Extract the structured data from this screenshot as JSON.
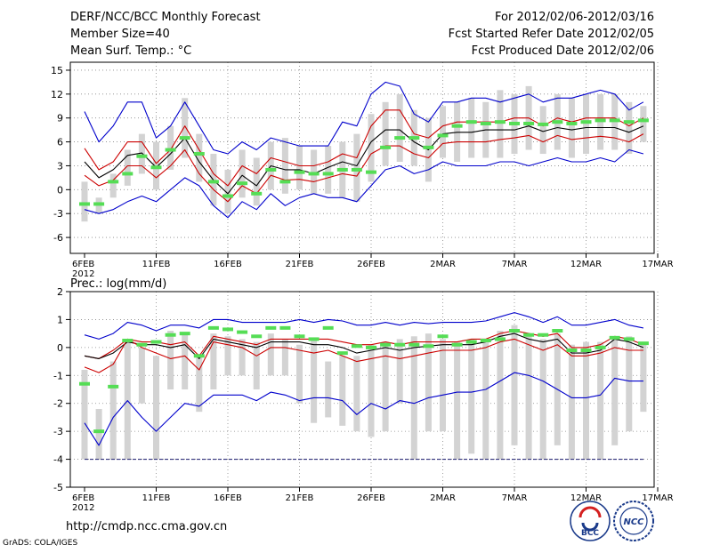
{
  "header": {
    "title": "DERF/NCC/BCC Monthly Forecast",
    "member_size": "Member Size=40",
    "forecast_period": "For 2012/02/06-2012/03/16",
    "started_refer": "Fcst Started Refer Date 2012/02/05",
    "produced": "Fcst Produced Date 2012/02/06"
  },
  "footer": {
    "url": "http://cmdp.ncc.cma.gov.cn",
    "grads_credit": "GrADS: COLA/IGES",
    "logo_bcc": "BCC",
    "logo_ncc": "NCC"
  },
  "colors": {
    "envelope": "#0000cc",
    "spread": "#cc0000",
    "mean": "#000000",
    "box": "#d3d3d3",
    "marker": "#55dd55"
  },
  "chart_data": [
    {
      "type": "line",
      "title": "Mean Surf. Temp.: °C",
      "xlabel": "",
      "ylabel": "",
      "ylim": [
        -8,
        16
      ],
      "yticks": [
        15,
        12,
        9,
        6,
        3,
        0,
        -3,
        -6
      ],
      "x_ticks": [
        {
          "day": 0,
          "label": "6FEB"
        },
        {
          "day": 5,
          "label": "11FEB"
        },
        {
          "day": 10,
          "label": "16FEB"
        },
        {
          "day": 15,
          "label": "21FEB"
        },
        {
          "day": 20,
          "label": "26FEB"
        },
        {
          "day": 25,
          "label": "2MAR"
        },
        {
          "day": 30,
          "label": "7MAR"
        },
        {
          "day": 35,
          "label": "12MAR"
        },
        {
          "day": 40,
          "label": "17MAR"
        }
      ],
      "year_label": "2012",
      "series": [
        {
          "name": "upper envelope",
          "values": [
            9.8,
            6,
            8,
            11,
            11,
            6.5,
            8,
            11,
            8,
            5,
            4.5,
            6,
            5,
            6.5,
            6,
            5.5,
            5.5,
            5.5,
            8.5,
            8,
            12,
            13.5,
            13,
            9.5,
            8.5,
            11,
            11,
            11.5,
            11.5,
            11,
            11.5,
            12,
            11,
            11.5,
            11.5,
            12,
            12.5,
            12,
            10,
            11
          ]
        },
        {
          "name": "upper spread",
          "values": [
            5.2,
            2.5,
            3.5,
            6,
            6,
            3.3,
            5,
            8,
            5,
            2,
            0.5,
            3,
            2,
            4,
            3.5,
            3,
            3,
            3.5,
            4.5,
            4,
            8,
            10,
            10,
            7,
            6.5,
            8,
            8.5,
            8.5,
            8.5,
            8.5,
            9,
            9,
            8,
            9,
            8.5,
            9,
            9,
            9,
            8,
            9
          ]
        },
        {
          "name": "mean",
          "values": [
            3.5,
            1.5,
            2.5,
            4.3,
            4.6,
            2.8,
            4.5,
            6.5,
            3.5,
            1.2,
            -0.5,
            1.8,
            0.5,
            3,
            2.5,
            2.5,
            2,
            2.8,
            3.5,
            3,
            6,
            7.5,
            7.5,
            6,
            5,
            7,
            7.2,
            7.2,
            7.5,
            7.5,
            7.5,
            8,
            7.3,
            7.8,
            7.5,
            7.8,
            7.8,
            7.8,
            7.2,
            8
          ]
        },
        {
          "name": "lower spread",
          "values": [
            1.8,
            0.5,
            1.2,
            3,
            3,
            1.5,
            3,
            5,
            2,
            0,
            -1.5,
            0.5,
            -0.5,
            1.8,
            1.2,
            1.3,
            1,
            1.5,
            2,
            1.7,
            4.5,
            5.5,
            5.5,
            4.5,
            4,
            5.8,
            6,
            6,
            6,
            6.3,
            6.5,
            6.8,
            6,
            6.8,
            6.3,
            6.5,
            6.7,
            6.5,
            6,
            7
          ]
        },
        {
          "name": "lower envelope",
          "values": [
            -2.5,
            -3,
            -2.5,
            -1.5,
            -0.8,
            -1.5,
            0,
            1.5,
            0.5,
            -2,
            -3.5,
            -1.5,
            -2.5,
            -0.5,
            -2,
            -1,
            -0.5,
            -1,
            -1,
            -1.5,
            0.5,
            2.5,
            3,
            2,
            2.5,
            3.5,
            3,
            3,
            3,
            3.5,
            3.5,
            3,
            3.5,
            4,
            3.5,
            3.5,
            4,
            3.5,
            5,
            4.5
          ]
        },
        {
          "name": "observed marker",
          "values": [
            -1.8,
            -1.8,
            1,
            2,
            4.2,
            2.8,
            5,
            6.5,
            4.5,
            1,
            -0.8,
            0.8,
            -0.5,
            2.5,
            1,
            2.2,
            2,
            2,
            2.5,
            2.5,
            2.2,
            5.3,
            6.5,
            6.5,
            5.3,
            6.8,
            8,
            8.5,
            8.3,
            8.5,
            8.3,
            8.3,
            8.2,
            8.5,
            8.3,
            8.5,
            8.7,
            8.7,
            8.5,
            8.7
          ]
        }
      ],
      "box_ranges": [
        [
          -4,
          1
        ],
        [
          -3,
          -1
        ],
        [
          -1,
          2
        ],
        [
          0.5,
          5
        ],
        [
          2,
          7
        ],
        [
          0,
          6
        ],
        [
          2.5,
          8
        ],
        [
          4,
          11.5
        ],
        [
          1,
          7
        ],
        [
          -2,
          4.5
        ],
        [
          -3,
          2.5
        ],
        [
          -1,
          5
        ],
        [
          -2,
          4
        ],
        [
          0,
          6
        ],
        [
          -0.5,
          6.5
        ],
        [
          0,
          5.5
        ],
        [
          -0.5,
          5
        ],
        [
          -0.5,
          5.5
        ],
        [
          -1,
          6
        ],
        [
          -1.5,
          7
        ],
        [
          1,
          9.5
        ],
        [
          3,
          11
        ],
        [
          3.5,
          12
        ],
        [
          3,
          10
        ],
        [
          1,
          9
        ],
        [
          4,
          10.5
        ],
        [
          3.5,
          11
        ],
        [
          4,
          11.5
        ],
        [
          4,
          11
        ],
        [
          4,
          12.5
        ],
        [
          4.5,
          12
        ],
        [
          5,
          13
        ],
        [
          4.5,
          10.5
        ],
        [
          5,
          12
        ],
        [
          4,
          11.5
        ],
        [
          4.5,
          12
        ],
        [
          5,
          12
        ],
        [
          5,
          12
        ],
        [
          4.5,
          11
        ],
        [
          6,
          10.5
        ]
      ]
    },
    {
      "type": "line",
      "title": "Prec.: log(mm/d)",
      "xlabel": "",
      "ylabel": "",
      "ylim": [
        -5,
        2
      ],
      "yticks": [
        2,
        1,
        0,
        -1,
        -2,
        -3,
        -4,
        -5
      ],
      "x_ticks": [
        {
          "day": 0,
          "label": "6FEB"
        },
        {
          "day": 5,
          "label": "11FEB"
        },
        {
          "day": 10,
          "label": "16FEB"
        },
        {
          "day": 15,
          "label": "21FEB"
        },
        {
          "day": 20,
          "label": "26FEB"
        },
        {
          "day": 25,
          "label": "2MAR"
        },
        {
          "day": 30,
          "label": "7MAR"
        },
        {
          "day": 35,
          "label": "12MAR"
        },
        {
          "day": 40,
          "label": "17MAR"
        }
      ],
      "year_label": "2012",
      "floor_line": -4,
      "series": [
        {
          "name": "upper envelope",
          "values": [
            0.45,
            0.3,
            0.5,
            0.9,
            0.8,
            0.6,
            0.8,
            0.8,
            0.7,
            1.0,
            1.0,
            0.9,
            0.9,
            0.9,
            0.9,
            1.0,
            0.9,
            1.0,
            0.95,
            0.8,
            0.8,
            0.9,
            0.8,
            0.9,
            0.85,
            0.9,
            0.9,
            0.9,
            0.95,
            1.1,
            1.25,
            1.1,
            0.9,
            1.1,
            0.8,
            0.8,
            0.9,
            1.0,
            0.8,
            0.7
          ]
        },
        {
          "name": "upper spread",
          "values": [
            -0.3,
            -0.4,
            -0.1,
            0.3,
            0.2,
            0.2,
            0.1,
            0.2,
            -0.3,
            0.4,
            0.3,
            0.2,
            0.1,
            0.3,
            0.3,
            0.3,
            0.3,
            0.3,
            0.2,
            0.1,
            0.1,
            0.2,
            0.1,
            0.2,
            0.2,
            0.2,
            0.2,
            0.3,
            0.3,
            0.5,
            0.6,
            0.5,
            0.4,
            0.5,
            0.0,
            0.0,
            0.1,
            0.4,
            0.3,
            0.1
          ]
        },
        {
          "name": "mean",
          "values": [
            -0.3,
            -0.4,
            -0.2,
            0.2,
            0.1,
            0.1,
            0.0,
            0.1,
            -0.4,
            0.3,
            0.2,
            0.1,
            0.0,
            0.2,
            0.2,
            0.2,
            0.1,
            0.1,
            0.0,
            -0.2,
            -0.1,
            0.0,
            -0.1,
            0.0,
            0.05,
            0.1,
            0.1,
            0.1,
            0.2,
            0.4,
            0.5,
            0.3,
            0.2,
            0.3,
            -0.2,
            -0.2,
            -0.1,
            0.3,
            0.2,
            0.0
          ]
        },
        {
          "name": "lower spread",
          "values": [
            -0.7,
            -0.9,
            -0.6,
            0.3,
            0.0,
            -0.2,
            -0.4,
            -0.3,
            -0.8,
            0.2,
            0.1,
            0.0,
            -0.3,
            0.0,
            0.0,
            -0.1,
            -0.2,
            -0.1,
            -0.3,
            -0.5,
            -0.4,
            -0.3,
            -0.4,
            -0.3,
            -0.2,
            -0.1,
            -0.1,
            -0.1,
            0.0,
            0.2,
            0.3,
            0.1,
            -0.1,
            0.1,
            -0.3,
            -0.3,
            -0.2,
            0.0,
            -0.1,
            -0.1
          ]
        },
        {
          "name": "lower envelope",
          "values": [
            -2.7,
            -3.5,
            -2.5,
            -1.9,
            -2.5,
            -3.0,
            -2.5,
            -2.0,
            -2.1,
            -1.7,
            -1.7,
            -1.7,
            -1.9,
            -1.6,
            -1.7,
            -1.9,
            -1.8,
            -1.8,
            -1.9,
            -2.4,
            -2.0,
            -2.2,
            -1.9,
            -2.0,
            -1.8,
            -1.7,
            -1.6,
            -1.6,
            -1.5,
            -1.2,
            -0.9,
            -1.0,
            -1.2,
            -1.5,
            -1.8,
            -1.8,
            -1.7,
            -1.1,
            -1.2,
            -1.2
          ]
        },
        {
          "name": "observed marker",
          "values": [
            -1.3,
            -3.0,
            -1.4,
            0.25,
            0.1,
            0.2,
            0.45,
            0.5,
            -0.3,
            0.7,
            0.65,
            0.55,
            0.4,
            0.7,
            0.7,
            0.4,
            0.3,
            0.7,
            -0.2,
            0.05,
            0.0,
            0.1,
            0.1,
            0.1,
            0.05,
            0.4,
            0.1,
            0.2,
            0.25,
            0.3,
            0.6,
            0.45,
            0.45,
            0.6,
            -0.1,
            -0.1,
            0.0,
            0.35,
            0.3,
            0.15
          ]
        }
      ],
      "box_ranges": [
        [
          -4,
          -0.8
        ],
        [
          -4,
          -2.2
        ],
        [
          -4,
          -0.5
        ],
        [
          -4,
          0.3
        ],
        [
          -2,
          0.0
        ],
        [
          -4,
          -0.3
        ],
        [
          -1.5,
          0.6
        ],
        [
          -1.5,
          0.5
        ],
        [
          -2.3,
          -0.3
        ],
        [
          -1.5,
          0.5
        ],
        [
          -1,
          0.4
        ],
        [
          -1,
          0.3
        ],
        [
          -1.5,
          0.2
        ],
        [
          -1,
          0.5
        ],
        [
          -1,
          0.3
        ],
        [
          -2,
          0.1
        ],
        [
          -2.7,
          0.3
        ],
        [
          -2.5,
          -0.5
        ],
        [
          -2.8,
          -0.3
        ],
        [
          -3,
          -0.3
        ],
        [
          -3.2,
          0.1
        ],
        [
          -3,
          0.2
        ],
        [
          -2,
          0.3
        ],
        [
          -4,
          0.4
        ],
        [
          -3,
          0.5
        ],
        [
          -3,
          0.3
        ],
        [
          -4,
          0.2
        ],
        [
          -3.8,
          0.3
        ],
        [
          -4,
          0.2
        ],
        [
          -4,
          0.6
        ],
        [
          -3.5,
          0.8
        ],
        [
          -4,
          0.5
        ],
        [
          -4,
          0.3
        ],
        [
          -3.5,
          0.5
        ],
        [
          -4,
          0.1
        ],
        [
          -4,
          0.2
        ],
        [
          -4,
          0.2
        ],
        [
          -3.5,
          0.4
        ],
        [
          -3,
          0.4
        ],
        [
          -2.3,
          0.2
        ]
      ]
    }
  ]
}
